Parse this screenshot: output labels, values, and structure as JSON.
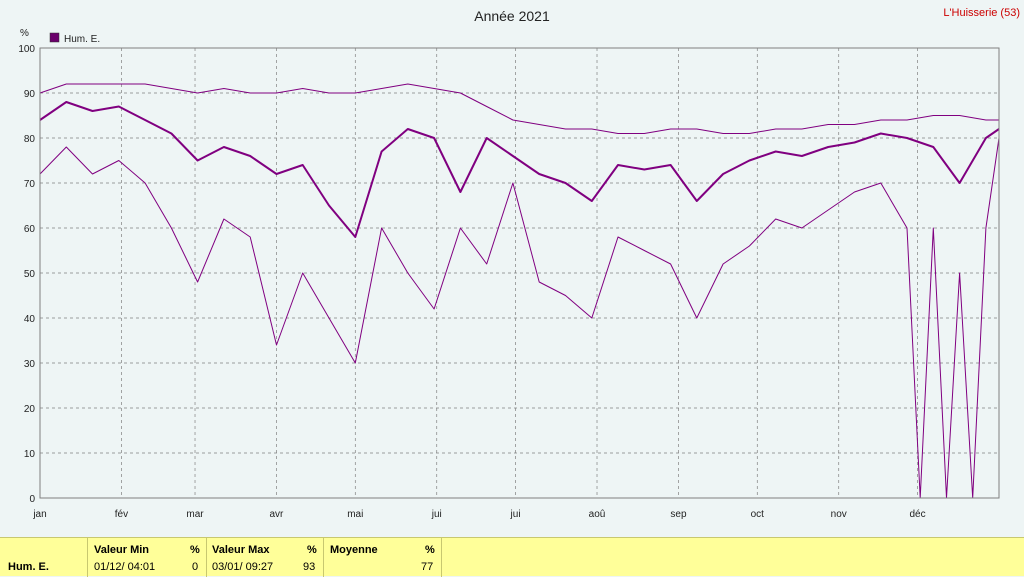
{
  "header": {
    "title": "Année 2021",
    "station": "L'Huisserie (53)",
    "unit": "%"
  },
  "legend": {
    "label": "Hum. E.",
    "color": "#6b006b"
  },
  "colors": {
    "series": "#800080",
    "frame": "#808080",
    "grid": "#808080",
    "stats_bg": "#ffff99"
  },
  "chart_data": {
    "type": "line",
    "title": "Année 2021",
    "ylabel": "%",
    "ylim": [
      0,
      100
    ],
    "yticks": [
      0,
      10,
      20,
      30,
      40,
      50,
      60,
      70,
      80,
      90,
      100
    ],
    "x_range_days": [
      0,
      365
    ],
    "month_ticks": [
      {
        "label": "jan",
        "day": 0
      },
      {
        "label": "fév",
        "day": 31
      },
      {
        "label": "mar",
        "day": 59
      },
      {
        "label": "avr",
        "day": 90
      },
      {
        "label": "mai",
        "day": 120
      },
      {
        "label": "jui",
        "day": 151
      },
      {
        "label": "jui",
        "day": 181
      },
      {
        "label": "aoû",
        "day": 212
      },
      {
        "label": "sep",
        "day": 243
      },
      {
        "label": "oct",
        "day": 273
      },
      {
        "label": "nov",
        "day": 304
      },
      {
        "label": "déc",
        "day": 334
      }
    ],
    "grid": true,
    "legend_position": "top-left",
    "series": [
      {
        "name": "Hum. E.",
        "role": "max",
        "x": [
          0,
          10,
          20,
          30,
          40,
          50,
          60,
          70,
          80,
          90,
          100,
          110,
          120,
          130,
          140,
          150,
          160,
          170,
          180,
          190,
          200,
          210,
          220,
          230,
          240,
          250,
          260,
          270,
          280,
          290,
          300,
          310,
          320,
          330,
          340,
          350,
          360,
          365
        ],
        "values": [
          90,
          92,
          92,
          92,
          92,
          91,
          90,
          91,
          90,
          90,
          91,
          90,
          90,
          91,
          92,
          91,
          90,
          87,
          84,
          83,
          82,
          82,
          81,
          81,
          82,
          82,
          81,
          81,
          82,
          82,
          83,
          83,
          84,
          84,
          85,
          85,
          84,
          84
        ]
      },
      {
        "name": "Hum. E.",
        "role": "mean",
        "x": [
          0,
          10,
          20,
          30,
          40,
          50,
          60,
          70,
          80,
          90,
          100,
          110,
          120,
          130,
          140,
          150,
          160,
          170,
          180,
          190,
          200,
          210,
          220,
          230,
          240,
          250,
          260,
          270,
          280,
          290,
          300,
          310,
          320,
          330,
          340,
          350,
          360,
          365
        ],
        "values": [
          84,
          88,
          86,
          87,
          84,
          81,
          75,
          78,
          76,
          72,
          74,
          65,
          58,
          77,
          82,
          80,
          68,
          80,
          76,
          72,
          70,
          66,
          74,
          73,
          74,
          66,
          72,
          75,
          77,
          76,
          78,
          79,
          81,
          80,
          78,
          70,
          80,
          82
        ]
      },
      {
        "name": "Hum. E.",
        "role": "min",
        "x": [
          0,
          10,
          20,
          30,
          40,
          50,
          60,
          70,
          80,
          90,
          100,
          110,
          120,
          130,
          140,
          150,
          160,
          170,
          180,
          190,
          200,
          210,
          220,
          230,
          240,
          250,
          260,
          270,
          280,
          290,
          300,
          310,
          320,
          330,
          335,
          340,
          345,
          350,
          355,
          360,
          365
        ],
        "values": [
          72,
          78,
          72,
          75,
          70,
          60,
          48,
          62,
          58,
          34,
          50,
          40,
          30,
          60,
          50,
          42,
          60,
          52,
          70,
          48,
          45,
          40,
          58,
          55,
          52,
          40,
          52,
          56,
          62,
          60,
          64,
          68,
          70,
          60,
          0,
          60,
          0,
          50,
          0,
          60,
          80
        ]
      }
    ]
  },
  "stats": {
    "row_label": "Hum. E.",
    "min_header": "Valeur Min",
    "min_unit": "%",
    "min_time": "01/12/  04:01",
    "min_value": "0",
    "max_header": "Valeur Max",
    "max_unit": "%",
    "max_time": "03/01/  09:27",
    "max_value": "93",
    "mean_header": "Moyenne",
    "mean_unit": "%",
    "mean_value": "77"
  }
}
